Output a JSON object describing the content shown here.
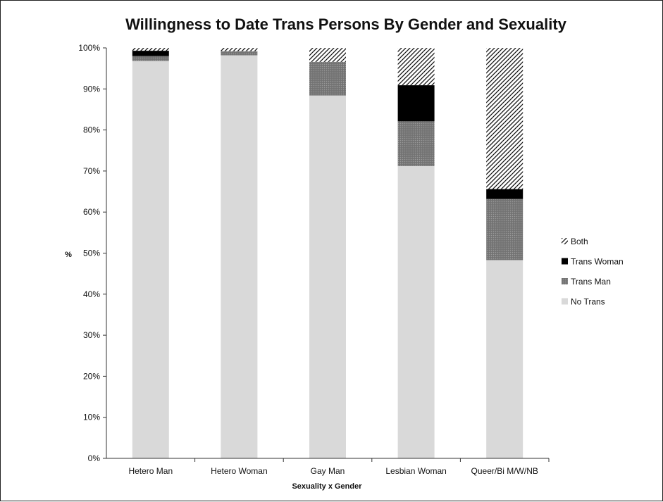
{
  "chart_data": {
    "type": "bar",
    "stacked": true,
    "percent": true,
    "title": "Willingness to Date Trans Persons By Gender and Sexuality",
    "xlabel": "Sexuality x Gender",
    "ylabel": "%",
    "ylim": [
      0,
      100
    ],
    "yticks": [
      "0%",
      "10%",
      "20%",
      "30%",
      "40%",
      "50%",
      "60%",
      "70%",
      "80%",
      "90%",
      "100%"
    ],
    "legend_position": "right",
    "categories": [
      "Hetero Man",
      "Hetero Woman",
      "Gay Man",
      "Lesbian Woman",
      "Queer/Bi M/W/NB"
    ],
    "series": [
      {
        "name": "No Trans",
        "values": [
          96.8,
          98.2,
          88.4,
          71.2,
          48.3
        ],
        "color": "#d9d9d9",
        "pattern": "solid"
      },
      {
        "name": "Trans Man",
        "values": [
          1.2,
          1.0,
          8.2,
          10.9,
          14.9
        ],
        "color": "#7f7f7f",
        "pattern": "dotted"
      },
      {
        "name": "Trans Woman",
        "values": [
          1.3,
          0.0,
          0.0,
          8.8,
          2.4
        ],
        "color": "#000000",
        "pattern": "solid"
      },
      {
        "name": "Both",
        "values": [
          0.7,
          0.8,
          3.4,
          9.1,
          34.4
        ],
        "color": "#000000",
        "pattern": "diagonal-hatch"
      }
    ],
    "legend_order": [
      "Both",
      "Trans Woman",
      "Trans Man",
      "No Trans"
    ]
  }
}
